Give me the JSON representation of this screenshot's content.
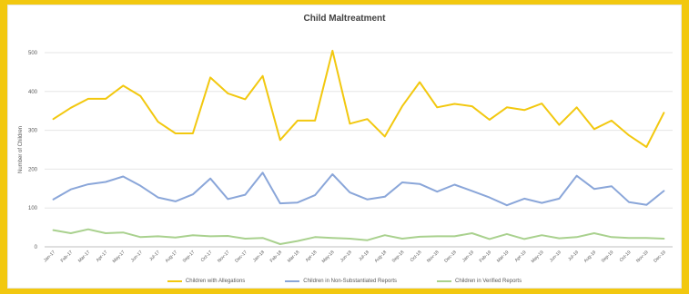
{
  "chart_data": {
    "type": "line",
    "title": "Child Maltreatment",
    "xlabel": "",
    "ylabel": "Number of Children",
    "ylim": [
      0,
      500
    ],
    "yticks": [
      0,
      100,
      200,
      300,
      400,
      500
    ],
    "grid": true,
    "legend_position": "bottom",
    "categories": [
      "Jan-17",
      "Feb-17",
      "Mar-17",
      "Apr-17",
      "May-17",
      "Jun-17",
      "Jul-17",
      "Aug-17",
      "Sep-17",
      "Oct-17",
      "Nov-17",
      "Dec-17",
      "Jan-18",
      "Feb-18",
      "Mar-18",
      "Apr-18",
      "May-18",
      "Jun-18",
      "Jul-18",
      "Aug-18",
      "Sep-18",
      "Oct-18",
      "Nov-18",
      "Dec-18",
      "Jan-19",
      "Feb-19",
      "Mar-19",
      "Apr-19",
      "May-19",
      "Jun-19",
      "Jul-19",
      "Aug-19",
      "Sep-19",
      "Oct-19",
      "Nov-19",
      "Dec-19"
    ],
    "series": [
      {
        "name": "Children with Allegations",
        "color": "#f2c80f",
        "values": [
          329,
          358,
          381,
          381,
          415,
          388,
          322,
          292,
          292,
          436,
          395,
          380,
          440,
          275,
          325,
          325,
          505,
          317,
          329,
          284,
          362,
          424,
          359,
          368,
          362,
          327,
          359,
          352,
          369,
          314,
          359,
          303,
          325,
          287,
          257,
          345
        ]
      },
      {
        "name": "Children in Non-Substantiated Reports",
        "color": "#8aa6d9",
        "values": [
          122,
          148,
          161,
          167,
          181,
          157,
          127,
          117,
          135,
          176,
          123,
          134,
          191,
          112,
          114,
          133,
          187,
          140,
          122,
          129,
          166,
          162,
          142,
          160,
          144,
          127,
          107,
          124,
          113,
          124,
          183,
          149,
          156,
          115,
          108,
          144
        ]
      },
      {
        "name": "Children in Verified Reports",
        "color": "#a9d18e",
        "values": [
          43,
          35,
          45,
          35,
          37,
          25,
          27,
          24,
          30,
          27,
          28,
          21,
          23,
          7,
          15,
          25,
          23,
          21,
          17,
          30,
          21,
          26,
          27,
          27,
          35,
          20,
          33,
          20,
          30,
          22,
          25,
          35,
          25,
          23,
          23,
          21
        ]
      }
    ]
  }
}
